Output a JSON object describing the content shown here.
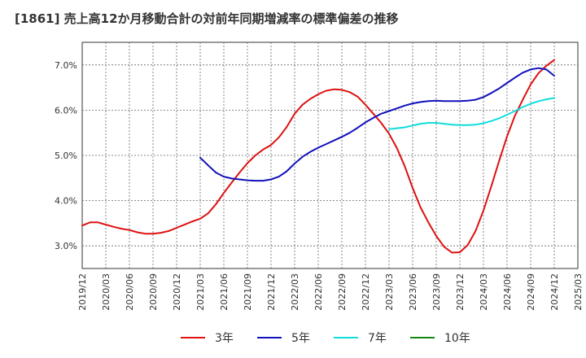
{
  "chart_data": {
    "type": "line",
    "title": "[1861]  売上高12か月移動合計の対前年同期増減率の標準偏差の推移",
    "xlabel": "",
    "ylabel": "",
    "ylim": [
      2.5,
      7.5
    ],
    "y_ticks": [
      "3.0%",
      "4.0%",
      "5.0%",
      "6.0%",
      "7.0%"
    ],
    "y_tick_values": [
      3.0,
      4.0,
      5.0,
      6.0,
      7.0
    ],
    "x_ticks": [
      "2019/12",
      "2020/03",
      "2020/06",
      "2020/09",
      "2020/12",
      "2021/03",
      "2021/06",
      "2021/09",
      "2021/12",
      "2022/03",
      "2022/06",
      "2022/09",
      "2022/12",
      "2023/03",
      "2023/06",
      "2023/09",
      "2023/12",
      "2024/03",
      "2024/06",
      "2024/09",
      "2024/12",
      "2025/03"
    ],
    "grid": true,
    "legend_position": "bottom",
    "series": [
      {
        "name": "3年",
        "color": "#dd1111",
        "x": [
          "2019/12",
          "2020/01",
          "2020/02",
          "2020/03",
          "2020/04",
          "2020/05",
          "2020/06",
          "2020/07",
          "2020/08",
          "2020/09",
          "2020/10",
          "2020/11",
          "2020/12",
          "2021/01",
          "2021/02",
          "2021/03",
          "2021/04",
          "2021/05",
          "2021/06",
          "2021/07",
          "2021/08",
          "2021/09",
          "2021/10",
          "2021/11",
          "2021/12",
          "2022/01",
          "2022/02",
          "2022/03",
          "2022/04",
          "2022/05",
          "2022/06",
          "2022/07",
          "2022/08",
          "2022/09",
          "2022/10",
          "2022/11",
          "2022/12",
          "2023/01",
          "2023/02",
          "2023/03",
          "2023/04",
          "2023/05",
          "2023/06",
          "2023/07",
          "2023/08",
          "2023/09",
          "2023/10",
          "2023/11",
          "2023/12",
          "2024/01",
          "2024/02",
          "2024/03",
          "2024/04",
          "2024/05",
          "2024/06",
          "2024/07",
          "2024/08",
          "2024/09",
          "2024/10",
          "2024/11",
          "2024/12"
        ],
        "values": [
          3.45,
          3.52,
          3.52,
          3.47,
          3.42,
          3.38,
          3.35,
          3.3,
          3.27,
          3.27,
          3.29,
          3.33,
          3.4,
          3.47,
          3.54,
          3.6,
          3.72,
          3.92,
          4.17,
          4.4,
          4.62,
          4.83,
          5.0,
          5.13,
          5.23,
          5.4,
          5.63,
          5.92,
          6.12,
          6.25,
          6.35,
          6.43,
          6.46,
          6.45,
          6.4,
          6.3,
          6.12,
          5.92,
          5.72,
          5.48,
          5.16,
          4.76,
          4.28,
          3.85,
          3.52,
          3.22,
          2.98,
          2.85,
          2.86,
          3.02,
          3.33,
          3.78,
          4.32,
          4.88,
          5.42,
          5.88,
          6.23,
          6.57,
          6.82,
          6.98,
          7.11
        ]
      },
      {
        "name": "5年",
        "color": "#1111bb",
        "x": [
          "2021/03",
          "2021/04",
          "2021/05",
          "2021/06",
          "2021/07",
          "2021/08",
          "2021/09",
          "2021/10",
          "2021/11",
          "2021/12",
          "2022/01",
          "2022/02",
          "2022/03",
          "2022/04",
          "2022/05",
          "2022/06",
          "2022/07",
          "2022/08",
          "2022/09",
          "2022/10",
          "2022/11",
          "2022/12",
          "2023/01",
          "2023/02",
          "2023/03",
          "2023/04",
          "2023/05",
          "2023/06",
          "2023/07",
          "2023/08",
          "2023/09",
          "2023/10",
          "2023/11",
          "2023/12",
          "2024/01",
          "2024/02",
          "2024/03",
          "2024/04",
          "2024/05",
          "2024/06",
          "2024/07",
          "2024/08",
          "2024/09",
          "2024/10",
          "2024/11",
          "2024/12"
        ],
        "values": [
          4.95,
          4.78,
          4.62,
          4.53,
          4.49,
          4.47,
          4.45,
          4.44,
          4.44,
          4.47,
          4.53,
          4.65,
          4.82,
          4.97,
          5.08,
          5.17,
          5.25,
          5.33,
          5.41,
          5.5,
          5.61,
          5.73,
          5.83,
          5.92,
          5.98,
          6.04,
          6.1,
          6.15,
          6.18,
          6.2,
          6.21,
          6.2,
          6.2,
          6.2,
          6.21,
          6.23,
          6.29,
          6.38,
          6.48,
          6.6,
          6.72,
          6.83,
          6.9,
          6.93,
          6.9,
          6.76
        ]
      },
      {
        "name": "7年",
        "color": "#11dddd",
        "x": [
          "2023/03",
          "2023/04",
          "2023/05",
          "2023/06",
          "2023/07",
          "2023/08",
          "2023/09",
          "2023/10",
          "2023/11",
          "2023/12",
          "2024/01",
          "2024/02",
          "2024/03",
          "2024/04",
          "2024/05",
          "2024/06",
          "2024/07",
          "2024/08",
          "2024/09",
          "2024/10",
          "2024/11",
          "2024/12"
        ],
        "values": [
          5.58,
          5.6,
          5.62,
          5.66,
          5.7,
          5.72,
          5.72,
          5.7,
          5.68,
          5.67,
          5.67,
          5.68,
          5.71,
          5.76,
          5.82,
          5.9,
          5.98,
          6.07,
          6.14,
          6.2,
          6.24,
          6.27
        ]
      },
      {
        "name": "10年",
        "color": "#118811",
        "x": [],
        "values": []
      }
    ]
  }
}
